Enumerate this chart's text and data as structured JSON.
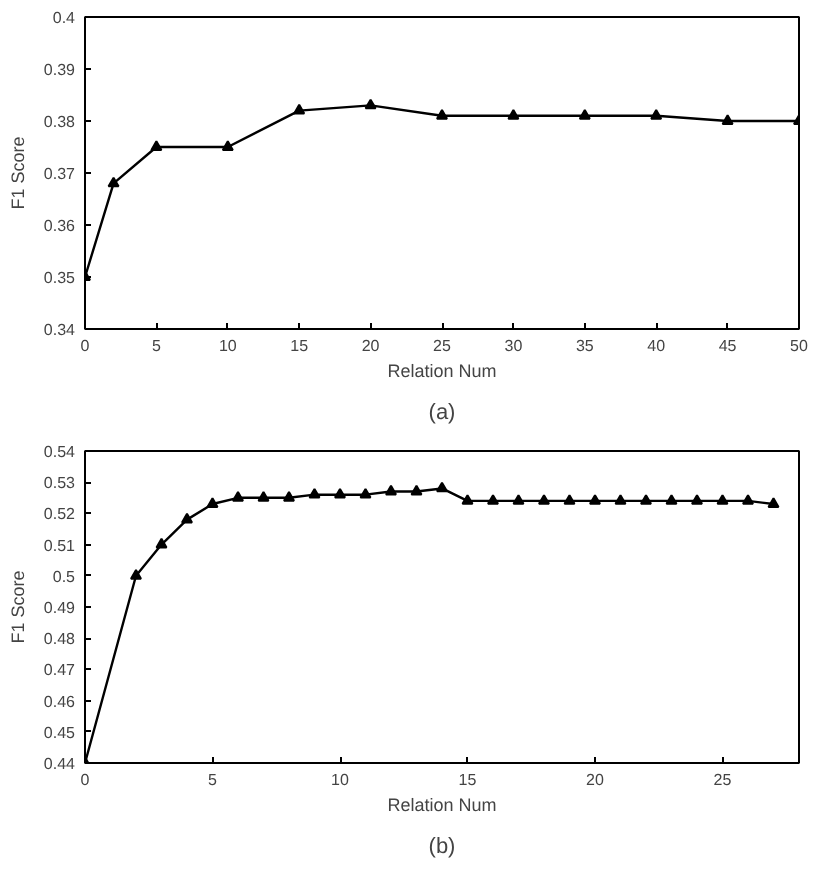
{
  "chart_data": [
    {
      "type": "line",
      "xlabel": "Relation Num",
      "ylabel": "F1 Score",
      "annotations": [
        "(a)"
      ],
      "marker": "triangle",
      "line_style": "solid",
      "grid": false,
      "x": [
        0,
        2,
        5,
        10,
        15,
        20,
        25,
        30,
        35,
        40,
        45,
        50
      ],
      "series": [
        {
          "color": "#000000",
          "values": [
            0.35,
            0.368,
            0.375,
            0.375,
            0.382,
            0.383,
            0.381,
            0.381,
            0.381,
            0.381,
            0.38,
            0.38
          ]
        }
      ],
      "xlim": [
        0,
        50
      ],
      "xticks": [
        0,
        5,
        10,
        15,
        20,
        25,
        30,
        35,
        40,
        45,
        50
      ],
      "ylim": [
        0.34,
        0.4
      ],
      "yticks": [
        0.34,
        0.35,
        0.36,
        0.37,
        0.38,
        0.39,
        0.4
      ]
    },
    {
      "type": "line",
      "xlabel": "Relation Num",
      "ylabel": "F1 Score",
      "annotations": [
        "(b)"
      ],
      "marker": "triangle",
      "line_style": "solid",
      "grid": false,
      "x": [
        0,
        2,
        3,
        4,
        5,
        6,
        7,
        8,
        9,
        10,
        11,
        12,
        13,
        14,
        15,
        16,
        17,
        18,
        19,
        20,
        21,
        22,
        23,
        24,
        25,
        26,
        27
      ],
      "series": [
        {
          "color": "#000000",
          "values": [
            0.44,
            0.5,
            0.51,
            0.518,
            0.523,
            0.525,
            0.525,
            0.525,
            0.526,
            0.526,
            0.526,
            0.527,
            0.527,
            0.528,
            0.524,
            0.524,
            0.524,
            0.524,
            0.524,
            0.524,
            0.524,
            0.524,
            0.524,
            0.524,
            0.524,
            0.524,
            0.523
          ]
        }
      ],
      "xlim": [
        0,
        28
      ],
      "xticks": [
        0,
        5,
        10,
        15,
        20,
        25
      ],
      "ylim": [
        0.44,
        0.54
      ],
      "yticks": [
        0.44,
        0.45,
        0.46,
        0.47,
        0.48,
        0.49,
        0.5,
        0.51,
        0.52,
        0.53,
        0.54
      ]
    }
  ]
}
